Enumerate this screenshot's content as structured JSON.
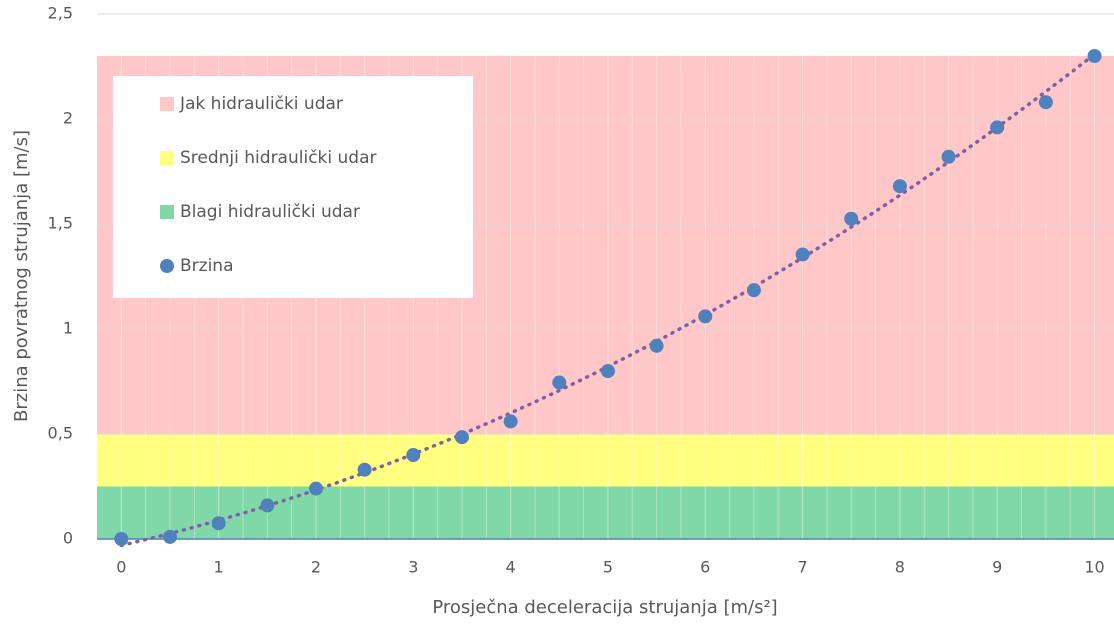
{
  "chart_data": {
    "type": "scatter",
    "xlabel": "Prosječna deceleracija strujanja [m/s²]",
    "ylabel": "Brzina povratnog strujanja [m/s]",
    "x": [
      0,
      0.5,
      1,
      1.5,
      2,
      2.5,
      3,
      3.5,
      4,
      4.5,
      5,
      5.5,
      6,
      6.5,
      7,
      7.5,
      8,
      8.5,
      9,
      9.5,
      10
    ],
    "series": [
      {
        "name": "Brzina",
        "color": "#4f81bd",
        "values": [
          0,
          0.01,
          0.075,
          0.16,
          0.24,
          0.33,
          0.4,
          0.485,
          0.56,
          0.745,
          0.8,
          0.92,
          1.06,
          1.185,
          1.355,
          1.525,
          1.68,
          1.82,
          1.96,
          2.08,
          2.3
        ]
      }
    ],
    "bands": [
      {
        "name": "Jak hidraulički udar",
        "color": "#ffc7c7",
        "range": [
          0.5,
          2.3
        ]
      },
      {
        "name": "Srednji hidraulički udar",
        "color": "#ffff80",
        "range": [
          0.25,
          0.5
        ]
      },
      {
        "name": "Blagi hidraulički udar",
        "color": "#80d8a8",
        "range": [
          0,
          0.25
        ]
      }
    ],
    "trendline_color": "#7f5fa8",
    "xlim": [
      -0.25,
      10.2
    ],
    "ylim": [
      0,
      2.5
    ],
    "xticks": [
      0,
      1,
      2,
      3,
      4,
      5,
      6,
      7,
      8,
      9,
      10
    ],
    "yticks": [
      0,
      {
        "value": 0.5,
        "label": "0,5"
      },
      1,
      {
        "value": 1.5,
        "label": "1,5"
      },
      2,
      {
        "value": 2.5,
        "label": "2,5"
      }
    ],
    "grid": true,
    "legend": "upper left"
  }
}
